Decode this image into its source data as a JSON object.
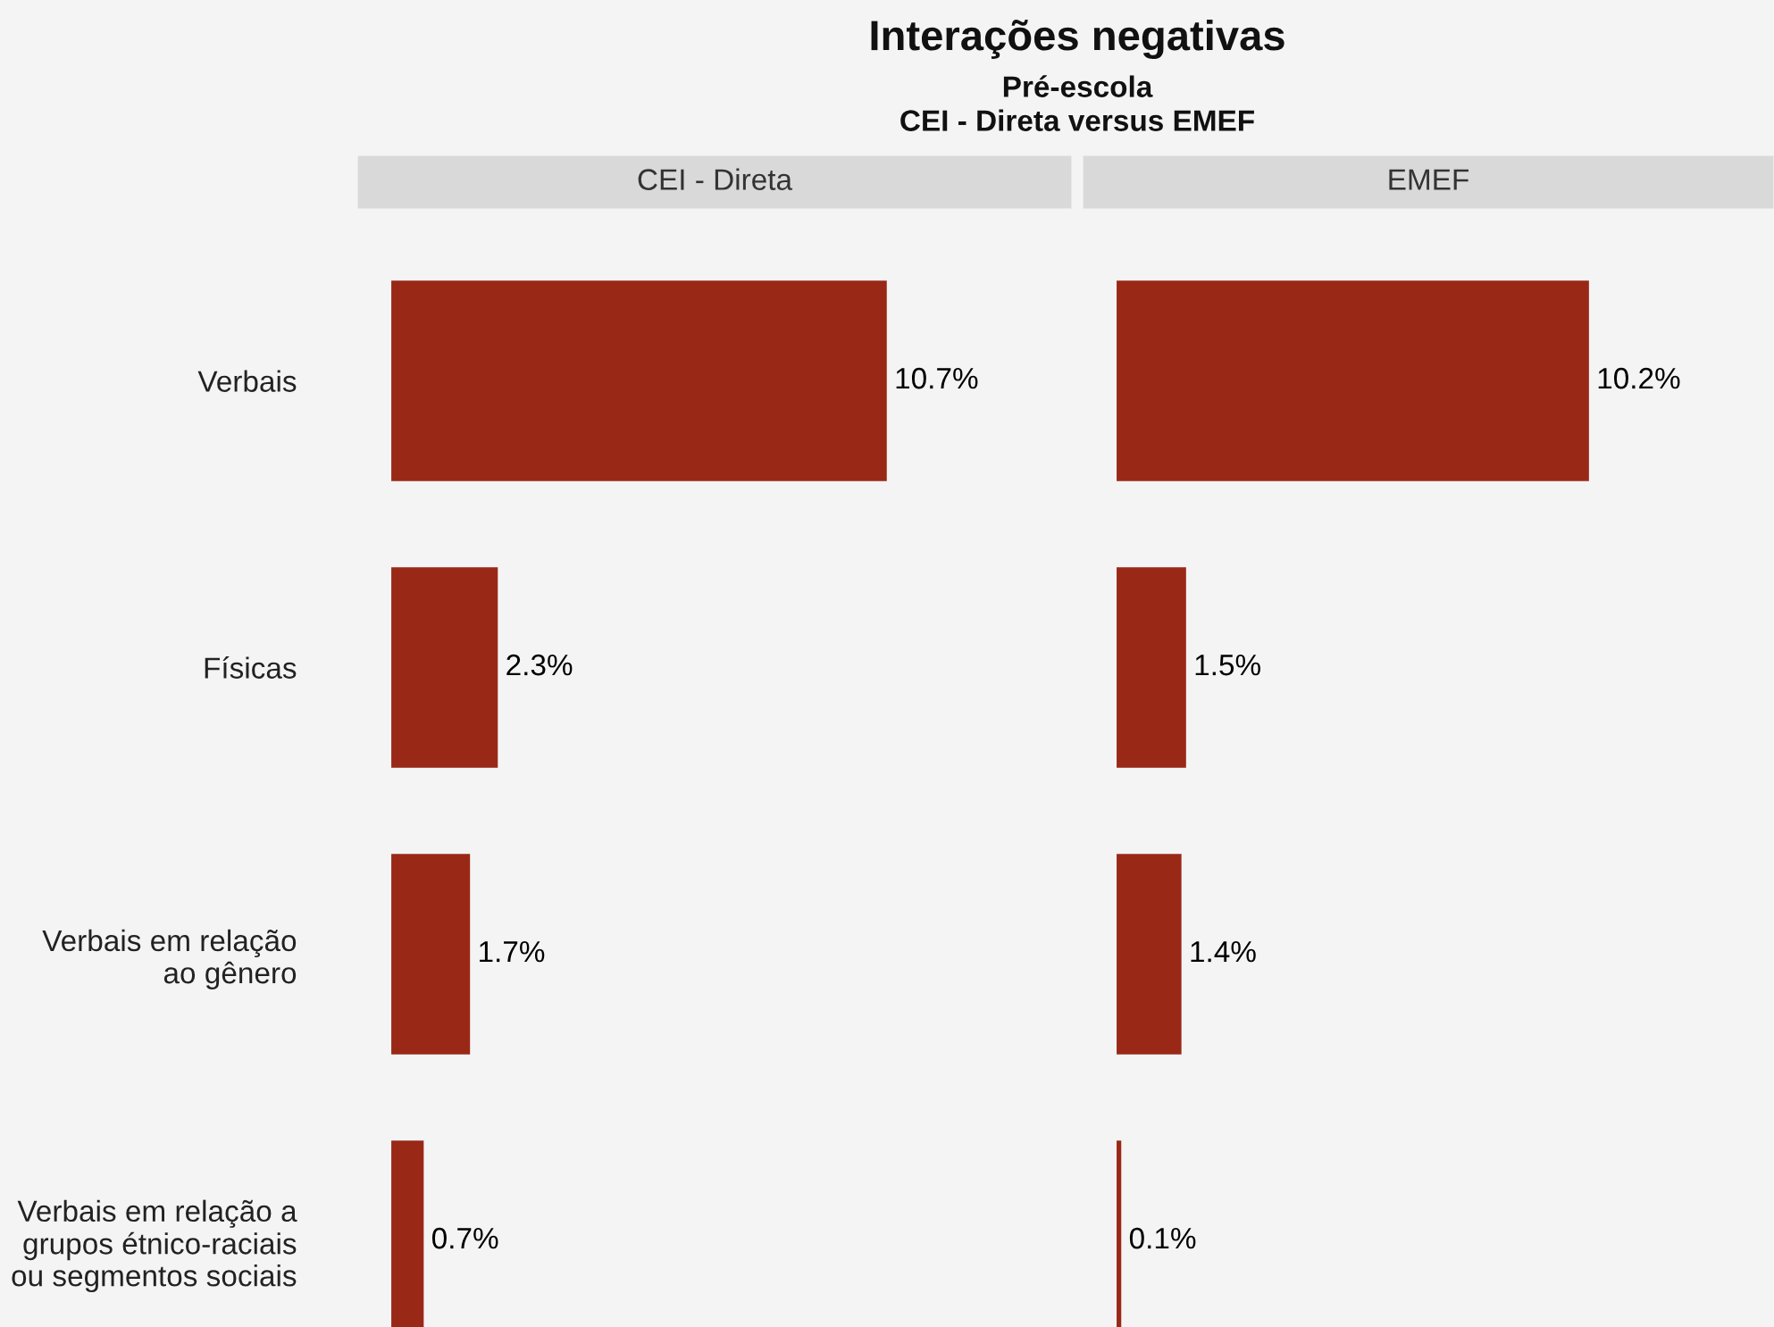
{
  "chart_data": [
    {
      "type": "bar",
      "orientation": "horizontal",
      "title": "CEI - Direta",
      "annotations": [
        "Interações negativas",
        "Pré-escola",
        "CEI - Direta versus EMEF"
      ],
      "categories": [
        "Verbais",
        "Físicas",
        "Verbais em relação\nao gênero",
        "Verbais em relação a\ngrupos étnico-raciais\nou segmentos sociais"
      ],
      "values": [
        10.7,
        2.3,
        1.7,
        0.7
      ],
      "value_labels": [
        "10.7%",
        "2.3%",
        "1.7%",
        "0.7%"
      ],
      "color": "#9a2817",
      "grid": false,
      "legend": false,
      "tick_labels": "y"
    },
    {
      "type": "bar",
      "orientation": "horizontal",
      "title": "EMEF",
      "categories": [
        null,
        null,
        null,
        null
      ],
      "values": [
        10.2,
        1.5,
        1.4,
        0.1
      ],
      "value_labels": [
        "10.2%",
        "1.5%",
        "1.4%",
        "0.1%"
      ],
      "color": "#9a2817",
      "grid": false,
      "legend": false,
      "tick_labels": false
    }
  ]
}
